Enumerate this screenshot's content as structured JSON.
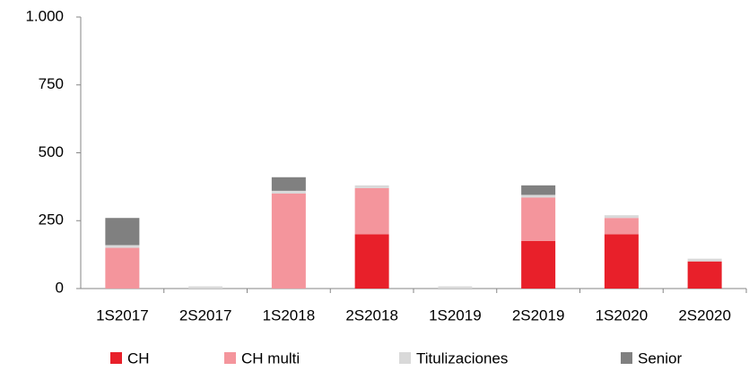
{
  "chart_data": {
    "type": "stacked_bar",
    "categories": [
      "1S2017",
      "2S2017",
      "1S2018",
      "2S2018",
      "1S2019",
      "2S2019",
      "1S2020",
      "2S2020"
    ],
    "series": [
      {
        "name": "CH",
        "color": "#e8202a",
        "values": [
          0,
          0,
          0,
          200,
          0,
          175,
          200,
          100
        ]
      },
      {
        "name": "CH multi",
        "color": "#f4959c",
        "values": [
          150,
          0,
          350,
          170,
          0,
          160,
          60,
          0
        ]
      },
      {
        "name": "Titulizaciones",
        "color": "#d9d9d9",
        "values": [
          10,
          8,
          10,
          10,
          8,
          10,
          10,
          10
        ]
      },
      {
        "name": "Senior",
        "color": "#808080",
        "values": [
          100,
          0,
          50,
          0,
          0,
          35,
          0,
          0
        ]
      }
    ],
    "ylim": [
      0,
      1000
    ],
    "yticks": [
      0,
      250,
      500,
      750,
      {
        "value": 1000,
        "label": "1.000"
      }
    ],
    "grid": false,
    "legend": "bottom"
  }
}
